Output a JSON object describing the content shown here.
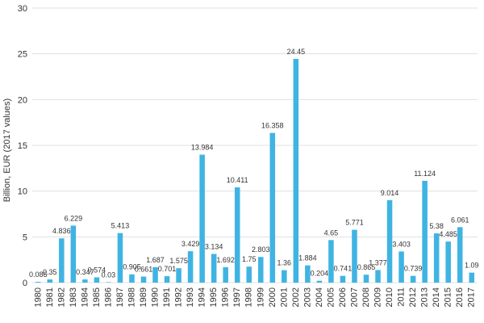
{
  "chart_data": {
    "type": "bar",
    "title": "",
    "xlabel": "",
    "ylabel": "Billion, EUR (2017 values)",
    "ylim": [
      0,
      30
    ],
    "yticks": [
      0,
      5,
      10,
      15,
      20,
      25,
      30
    ],
    "grid": true,
    "bar_color": "#3fb4e3",
    "categories": [
      "1980",
      "1981",
      "1982",
      "1983",
      "1984",
      "1985",
      "1986",
      "1987",
      "1988",
      "1989",
      "1990",
      "1991",
      "1992",
      "1993",
      "1994",
      "1995",
      "1996",
      "1997",
      "1998",
      "1999",
      "2000",
      "2001",
      "2002",
      "2003",
      "2004",
      "2005",
      "2006",
      "2007",
      "2008",
      "2009",
      "2010",
      "2011",
      "2012",
      "2013",
      "2014",
      "2015",
      "2016",
      "2017"
    ],
    "values": [
      0.086,
      0.35,
      4.836,
      6.229,
      0.347,
      0.574,
      0.03,
      5.413,
      0.905,
      0.661,
      1.687,
      0.701,
      1.575,
      3.429,
      13.984,
      3.134,
      1.692,
      10.411,
      1.75,
      2.803,
      16.358,
      1.36,
      24.45,
      1.884,
      0.204,
      4.65,
      0.741,
      5.771,
      0.865,
      1.377,
      9.014,
      3.403,
      0.739,
      11.124,
      5.38,
      4.485,
      6.061,
      1.09
    ],
    "data_labels": [
      "0.086",
      "0.35",
      "4.836",
      "6.229",
      "0.347",
      "0.574",
      "0.03",
      "5.413",
      "0.905",
      "0.661",
      "1.687",
      "0.701",
      "1.575",
      "3.429",
      "13.984",
      "3.134",
      "1.692",
      "10.411",
      "1.75",
      "2.803",
      "16.358",
      "1.36",
      "24.45",
      "1.884",
      "0.204",
      "4.65",
      "0.741",
      "5.771",
      "0.865",
      "1.377",
      "9.014",
      "3.403",
      "0.739",
      "11.124",
      "5.38",
      "4.485",
      "6.061",
      "1.09"
    ]
  }
}
